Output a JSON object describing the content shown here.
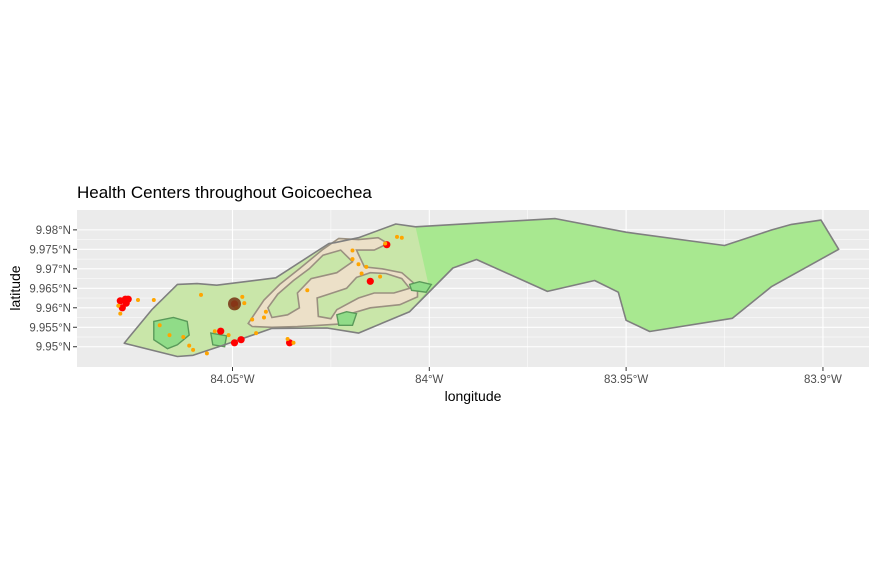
{
  "chart_data": {
    "type": "map",
    "title": "Health Centers throughout Goicoechea",
    "xlabel": "longitude",
    "ylabel": "latitude",
    "xlim": [
      -84.0895,
      -83.8883
    ],
    "ylim": [
      9.9448,
      9.9851
    ],
    "x_ticks": [
      {
        "value": -84.05,
        "label": "84.05°W"
      },
      {
        "value": -84.0,
        "label": "84°W"
      },
      {
        "value": -83.95,
        "label": "83.95°W"
      },
      {
        "value": -83.9,
        "label": "83.9°W"
      }
    ],
    "y_ticks": [
      {
        "value": 9.95,
        "label": "9.95°N"
      },
      {
        "value": 9.955,
        "label": "9.955°N"
      },
      {
        "value": 9.96,
        "label": "9.96°N"
      },
      {
        "value": 9.965,
        "label": "9.965°N"
      },
      {
        "value": 9.97,
        "label": "9.97°N"
      },
      {
        "value": 9.975,
        "label": "9.975°N"
      },
      {
        "value": 9.98,
        "label": "9.98°N"
      }
    ],
    "grid": true,
    "legend": "none",
    "colors": {
      "panel": "#ebebeb",
      "grid": "#ffffff",
      "outline": "#7f7f7f",
      "district_fill": "#a8e890",
      "west_fill": "#c9e6a9",
      "urban_fill": "#ece0c8",
      "urban_border": "#9a9080",
      "pocket_fill": "#90dc88",
      "pocket_border": "#5a9a5a",
      "center_major": "#ff0000",
      "center_minor": "#ffa500",
      "center_large": "#7a3b1a"
    },
    "polygons": {
      "district": [
        [
          -84.0775,
          9.9509
        ],
        [
          -84.0705,
          9.9595
        ],
        [
          -84.064,
          9.966
        ],
        [
          -84.059,
          9.9662
        ],
        [
          -84.054,
          9.9658
        ],
        [
          -84.039,
          9.9677
        ],
        [
          -84.0255,
          9.9765
        ],
        [
          -84.024,
          9.9767
        ],
        [
          -84.018,
          9.978
        ],
        [
          -84.0085,
          9.9815
        ],
        [
          -84.0035,
          9.9808
        ],
        [
          -83.98,
          9.9822
        ],
        [
          -83.968,
          9.9829
        ],
        [
          -83.95,
          9.9794
        ],
        [
          -83.925,
          9.976
        ],
        [
          -83.913,
          9.98
        ],
        [
          -83.908,
          9.9814
        ],
        [
          -83.9005,
          9.9825
        ],
        [
          -83.896,
          9.975
        ],
        [
          -83.913,
          9.9655
        ],
        [
          -83.923,
          9.9573
        ],
        [
          -83.944,
          9.9539
        ],
        [
          -83.95,
          9.9568
        ],
        [
          -83.952,
          9.964
        ],
        [
          -83.958,
          9.967
        ],
        [
          -83.97,
          9.9642
        ],
        [
          -83.988,
          9.9724
        ],
        [
          -83.994,
          9.9702
        ],
        [
          -84.005,
          9.959
        ],
        [
          -84.018,
          9.9535
        ],
        [
          -84.026,
          9.9548
        ],
        [
          -84.04,
          9.9547
        ],
        [
          -84.052,
          9.9505
        ],
        [
          -84.06,
          9.9478
        ],
        [
          -84.064,
          9.9475
        ],
        [
          -84.0775,
          9.9509
        ]
      ],
      "west_area": [
        [
          -84.0775,
          9.9509
        ],
        [
          -84.0705,
          9.9595
        ],
        [
          -84.064,
          9.966
        ],
        [
          -84.059,
          9.9662
        ],
        [
          -84.054,
          9.9658
        ],
        [
          -84.039,
          9.9677
        ],
        [
          -84.0255,
          9.9765
        ],
        [
          -84.024,
          9.9767
        ],
        [
          -84.018,
          9.978
        ],
        [
          -84.0085,
          9.9815
        ],
        [
          -84.0035,
          9.9808
        ],
        [
          -84.0,
          9.965
        ],
        [
          -84.005,
          9.959
        ],
        [
          -84.018,
          9.9535
        ],
        [
          -84.026,
          9.9548
        ],
        [
          -84.04,
          9.9547
        ],
        [
          -84.052,
          9.9505
        ],
        [
          -84.06,
          9.9478
        ],
        [
          -84.064,
          9.9475
        ],
        [
          -84.0775,
          9.9509
        ]
      ],
      "urban": [
        [
          -84.046,
          9.956
        ],
        [
          -84.042,
          9.962
        ],
        [
          -84.038,
          9.966
        ],
        [
          -84.033,
          9.97
        ],
        [
          -84.027,
          9.975
        ],
        [
          -84.023,
          9.9778
        ],
        [
          -84.018,
          9.9775
        ],
        [
          -84.013,
          9.978
        ],
        [
          -84.0105,
          9.9765
        ],
        [
          -84.014,
          9.9748
        ],
        [
          -84.0185,
          9.9748
        ],
        [
          -84.0165,
          9.9705
        ],
        [
          -84.012,
          9.97
        ],
        [
          -84.007,
          9.969
        ],
        [
          -84.003,
          9.9655
        ],
        [
          -84.003,
          9.9628
        ],
        [
          -84.0075,
          9.9608
        ],
        [
          -84.015,
          9.96
        ],
        [
          -84.021,
          9.9582
        ],
        [
          -84.023,
          9.9558
        ],
        [
          -84.028,
          9.9555
        ],
        [
          -84.0335,
          9.9552
        ],
        [
          -84.04,
          9.955
        ],
        [
          -84.045,
          9.9552
        ],
        [
          -84.046,
          9.956
        ]
      ],
      "urban_holes": [
        [
          [
            -84.0385,
            9.9635
          ],
          [
            -84.0345,
            9.967
          ],
          [
            -84.0305,
            9.97
          ],
          [
            -84.027,
            9.9735
          ],
          [
            -84.0225,
            9.9748
          ],
          [
            -84.0195,
            9.9718
          ],
          [
            -84.0235,
            9.969
          ],
          [
            -84.03,
            9.9675
          ],
          [
            -84.0335,
            9.9638
          ],
          [
            -84.033,
            9.96
          ],
          [
            -84.036,
            9.9582
          ],
          [
            -84.04,
            9.9575
          ],
          [
            -84.041,
            9.96
          ],
          [
            -84.0385,
            9.9635
          ]
        ],
        [
          [
            -84.0235,
            9.9595
          ],
          [
            -84.018,
            9.9625
          ],
          [
            -84.014,
            9.9638
          ],
          [
            -84.009,
            9.9638
          ],
          [
            -84.005,
            9.965
          ],
          [
            -84.007,
            9.9675
          ],
          [
            -84.011,
            9.9688
          ],
          [
            -84.015,
            9.969
          ],
          [
            -84.0185,
            9.9678
          ],
          [
            -84.021,
            9.965
          ],
          [
            -84.0255,
            9.9635
          ],
          [
            -84.0285,
            9.9625
          ],
          [
            -84.0282,
            9.9578
          ],
          [
            -84.025,
            9.9572
          ],
          [
            -84.0235,
            9.9595
          ]
        ]
      ],
      "pockets": [
        [
          [
            -84.07,
            9.9565
          ],
          [
            -84.065,
            9.9575
          ],
          [
            -84.0615,
            9.9565
          ],
          [
            -84.061,
            9.953
          ],
          [
            -84.064,
            9.9505
          ],
          [
            -84.0665,
            9.9495
          ],
          [
            -84.07,
            9.9518
          ],
          [
            -84.07,
            9.9565
          ]
        ],
        [
          [
            -84.0555,
            9.9535
          ],
          [
            -84.0515,
            9.9528
          ],
          [
            -84.052,
            9.95
          ],
          [
            -84.055,
            9.9505
          ],
          [
            -84.0555,
            9.9535
          ]
        ],
        [
          [
            -84.005,
            9.966
          ],
          [
            -84.0025,
            9.9667
          ],
          [
            -83.9995,
            9.966
          ],
          [
            -84.0008,
            9.964
          ],
          [
            -84.0045,
            9.9645
          ],
          [
            -84.005,
            9.966
          ]
        ],
        [
          [
            -84.0235,
            9.9582
          ],
          [
            -84.021,
            9.959
          ],
          [
            -84.0185,
            9.9585
          ],
          [
            -84.0195,
            9.9555
          ],
          [
            -84.023,
            9.9555
          ],
          [
            -84.0235,
            9.9582
          ]
        ]
      ]
    },
    "series": [
      {
        "kind": "major",
        "points": [
          [
            -84.0785,
            9.9618
          ],
          [
            -84.0772,
            9.9622
          ],
          [
            -84.0765,
            9.9622
          ],
          [
            -84.078,
            9.96
          ],
          [
            -84.077,
            9.9612
          ],
          [
            -84.053,
            9.954
          ],
          [
            -84.0495,
            9.951
          ],
          [
            -84.0478,
            9.9518
          ],
          [
            -84.0355,
            9.951
          ],
          [
            -84.015,
            9.9668
          ],
          [
            -84.0108,
            9.9762
          ],
          [
            -84.0495,
            9.961
          ]
        ]
      },
      {
        "kind": "minor",
        "points": [
          [
            -84.0785,
            9.9585
          ],
          [
            -84.079,
            9.9605
          ],
          [
            -84.074,
            9.962
          ],
          [
            -84.07,
            9.962
          ],
          [
            -84.0685,
            9.9555
          ],
          [
            -84.066,
            9.953
          ],
          [
            -84.0625,
            9.9525
          ],
          [
            -84.061,
            9.9503
          ],
          [
            -84.06,
            9.9492
          ],
          [
            -84.0565,
            9.9483
          ],
          [
            -84.0545,
            9.954
          ],
          [
            -84.051,
            9.953
          ],
          [
            -84.049,
            9.96
          ],
          [
            -84.0475,
            9.9628
          ],
          [
            -84.047,
            9.9612
          ],
          [
            -84.045,
            9.957
          ],
          [
            -84.042,
            9.9575
          ],
          [
            -84.0415,
            9.959
          ],
          [
            -84.044,
            9.9535
          ],
          [
            -84.0345,
            9.951
          ],
          [
            -84.036,
            9.952
          ],
          [
            -84.031,
            9.9645
          ],
          [
            -84.0195,
            9.9747
          ],
          [
            -84.018,
            9.9712
          ],
          [
            -84.0172,
            9.9688
          ],
          [
            -84.016,
            9.9705
          ],
          [
            -84.0112,
            9.9765
          ],
          [
            -84.0082,
            9.9782
          ],
          [
            -84.007,
            9.978
          ],
          [
            -84.0125,
            9.968
          ],
          [
            -84.0195,
            9.9725
          ],
          [
            -84.058,
            9.9633
          ]
        ]
      },
      {
        "kind": "large",
        "points": [
          [
            -84.0495,
            9.961
          ]
        ]
      }
    ]
  }
}
